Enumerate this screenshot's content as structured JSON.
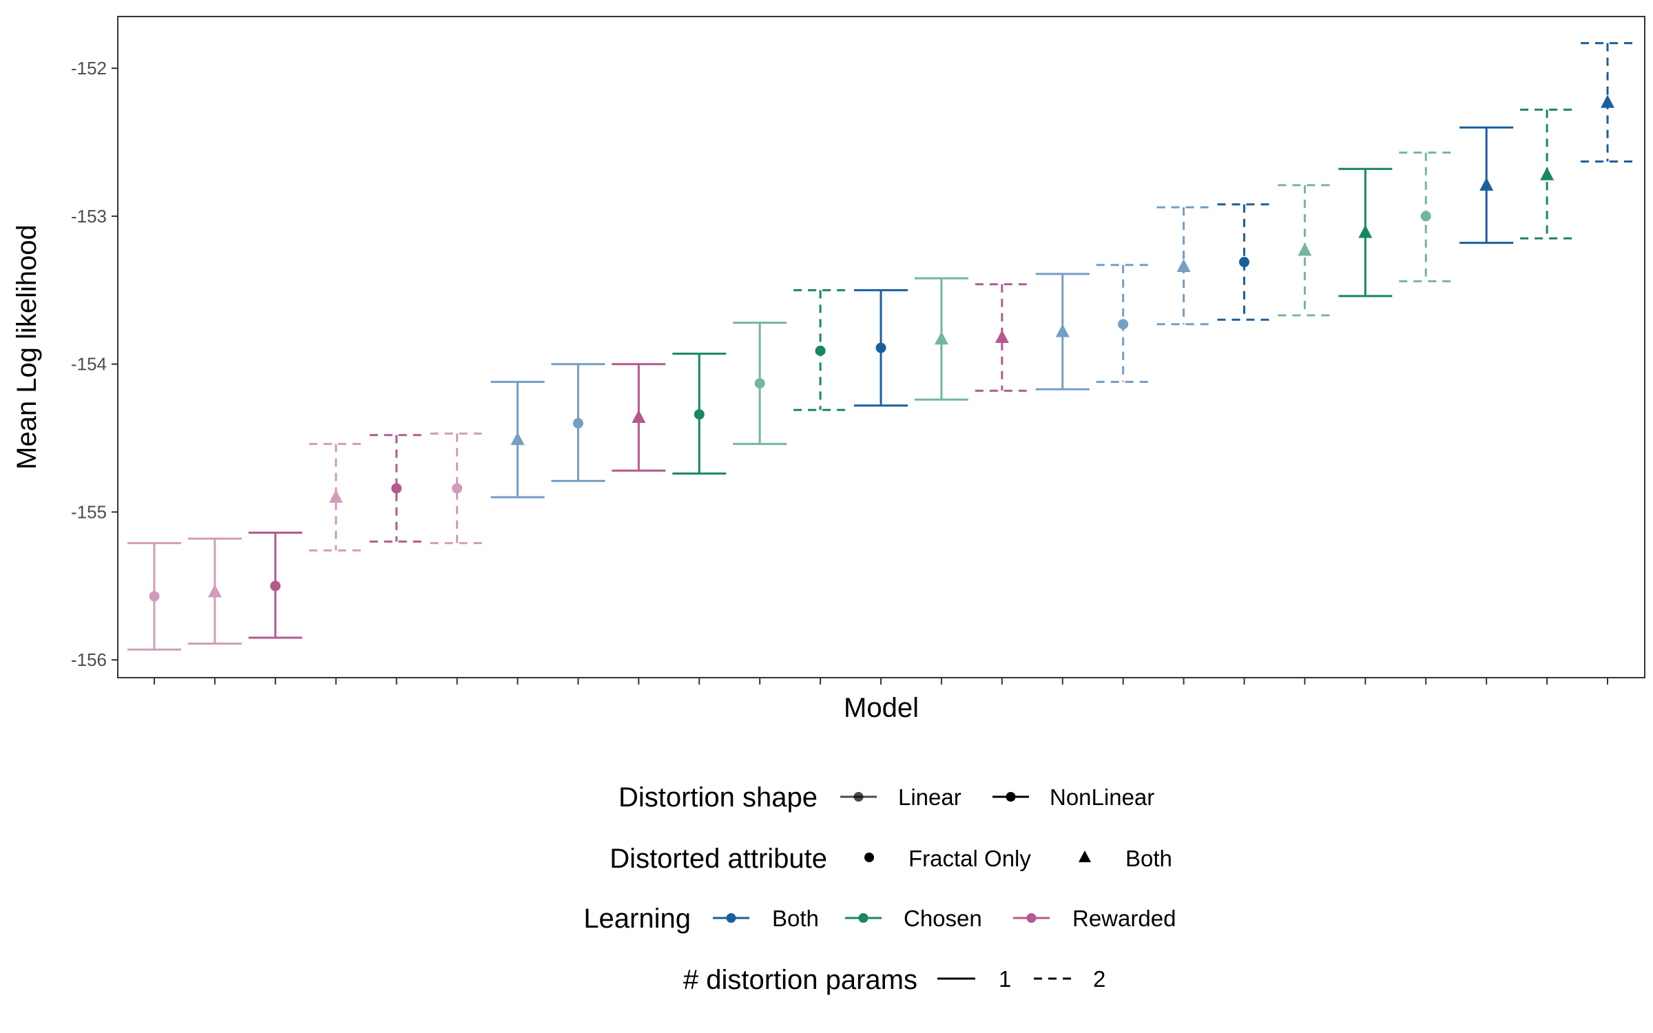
{
  "chart_data": {
    "type": "errorbar",
    "xlabel": "Model",
    "ylabel": "Mean Log likelihood",
    "ylim": [
      -156.12,
      -151.65
    ],
    "y_ticks": [
      -156,
      -155,
      -154,
      -153,
      -152
    ],
    "y_tick_labels": [
      "-156",
      "-155",
      "-154",
      "-153",
      "-152"
    ],
    "grid": false,
    "legend_position": "bottom",
    "colors": {
      "Both": "#1a5e9e",
      "Chosen": "#17875e",
      "Rewarded": "#b5598f"
    },
    "models": [
      {
        "learning": "Rewarded",
        "shape": "Linear",
        "attribute": "Fractal Only",
        "params": 1,
        "mean": -155.57,
        "lower": -155.93,
        "upper": -155.21
      },
      {
        "learning": "Rewarded",
        "shape": "Linear",
        "attribute": "Both",
        "params": 1,
        "mean": -155.54,
        "lower": -155.89,
        "upper": -155.18
      },
      {
        "learning": "Rewarded",
        "shape": "NonLinear",
        "attribute": "Fractal Only",
        "params": 1,
        "mean": -155.5,
        "lower": -155.85,
        "upper": -155.14
      },
      {
        "learning": "Rewarded",
        "shape": "Linear",
        "attribute": "Both",
        "params": 2,
        "mean": -154.9,
        "lower": -155.26,
        "upper": -154.54
      },
      {
        "learning": "Rewarded",
        "shape": "NonLinear",
        "attribute": "Fractal Only",
        "params": 2,
        "mean": -154.84,
        "lower": -155.2,
        "upper": -154.48
      },
      {
        "learning": "Rewarded",
        "shape": "Linear",
        "attribute": "Fractal Only",
        "params": 2,
        "mean": -154.84,
        "lower": -155.21,
        "upper": -154.47
      },
      {
        "learning": "Both",
        "shape": "Linear",
        "attribute": "Both",
        "params": 1,
        "mean": -154.51,
        "lower": -154.9,
        "upper": -154.12
      },
      {
        "learning": "Both",
        "shape": "Linear",
        "attribute": "Fractal Only",
        "params": 1,
        "mean": -154.4,
        "lower": -154.79,
        "upper": -154.0
      },
      {
        "learning": "Rewarded",
        "shape": "NonLinear",
        "attribute": "Both",
        "params": 1,
        "mean": -154.36,
        "lower": -154.72,
        "upper": -154.0
      },
      {
        "learning": "Chosen",
        "shape": "NonLinear",
        "attribute": "Fractal Only",
        "params": 1,
        "mean": -154.34,
        "lower": -154.74,
        "upper": -153.93
      },
      {
        "learning": "Chosen",
        "shape": "Linear",
        "attribute": "Fractal Only",
        "params": 1,
        "mean": -154.13,
        "lower": -154.54,
        "upper": -153.72
      },
      {
        "learning": "Chosen",
        "shape": "NonLinear",
        "attribute": "Fractal Only",
        "params": 2,
        "mean": -153.91,
        "lower": -154.31,
        "upper": -153.5
      },
      {
        "learning": "Both",
        "shape": "NonLinear",
        "attribute": "Fractal Only",
        "params": 1,
        "mean": -153.89,
        "lower": -154.28,
        "upper": -153.5
      },
      {
        "learning": "Chosen",
        "shape": "Linear",
        "attribute": "Both",
        "params": 1,
        "mean": -153.83,
        "lower": -154.24,
        "upper": -153.42
      },
      {
        "learning": "Rewarded",
        "shape": "NonLinear",
        "attribute": "Both",
        "params": 2,
        "mean": -153.82,
        "lower": -154.18,
        "upper": -153.46
      },
      {
        "learning": "Both",
        "shape": "Linear",
        "attribute": "Both",
        "params": 1,
        "mean": -153.78,
        "lower": -154.17,
        "upper": -153.39
      },
      {
        "learning": "Both",
        "shape": "Linear",
        "attribute": "Fractal Only",
        "params": 2,
        "mean": -153.73,
        "lower": -154.12,
        "upper": -153.33
      },
      {
        "learning": "Both",
        "shape": "Linear",
        "attribute": "Both",
        "params": 2,
        "mean": -153.34,
        "lower": -153.73,
        "upper": -152.94
      },
      {
        "learning": "Both",
        "shape": "NonLinear",
        "attribute": "Fractal Only",
        "params": 2,
        "mean": -153.31,
        "lower": -153.7,
        "upper": -152.92
      },
      {
        "learning": "Chosen",
        "shape": "Linear",
        "attribute": "Both",
        "params": 2,
        "mean": -153.23,
        "lower": -153.67,
        "upper": -152.79
      },
      {
        "learning": "Chosen",
        "shape": "NonLinear",
        "attribute": "Both",
        "params": 1,
        "mean": -153.11,
        "lower": -153.54,
        "upper": -152.68
      },
      {
        "learning": "Chosen",
        "shape": "Linear",
        "attribute": "Fractal Only",
        "params": 2,
        "mean": -153.0,
        "lower": -153.44,
        "upper": -152.57
      },
      {
        "learning": "Both",
        "shape": "NonLinear",
        "attribute": "Both",
        "params": 1,
        "mean": -152.79,
        "lower": -153.18,
        "upper": -152.4
      },
      {
        "learning": "Chosen",
        "shape": "NonLinear",
        "attribute": "Both",
        "params": 2,
        "mean": -152.72,
        "lower": -153.15,
        "upper": -152.28
      },
      {
        "learning": "Both",
        "shape": "NonLinear",
        "attribute": "Both",
        "params": 2,
        "mean": -152.23,
        "lower": -152.63,
        "upper": -151.83
      }
    ]
  },
  "legend": {
    "shape": {
      "title": "Distortion shape",
      "items": [
        "Linear",
        "NonLinear"
      ]
    },
    "attribute": {
      "title": "Distorted attribute",
      "items": [
        "Fractal Only",
        "Both"
      ]
    },
    "learning": {
      "title": "Learning",
      "items": [
        "Both",
        "Chosen",
        "Rewarded"
      ]
    },
    "params": {
      "title": "# distortion params",
      "items": [
        "1",
        "2"
      ]
    }
  }
}
